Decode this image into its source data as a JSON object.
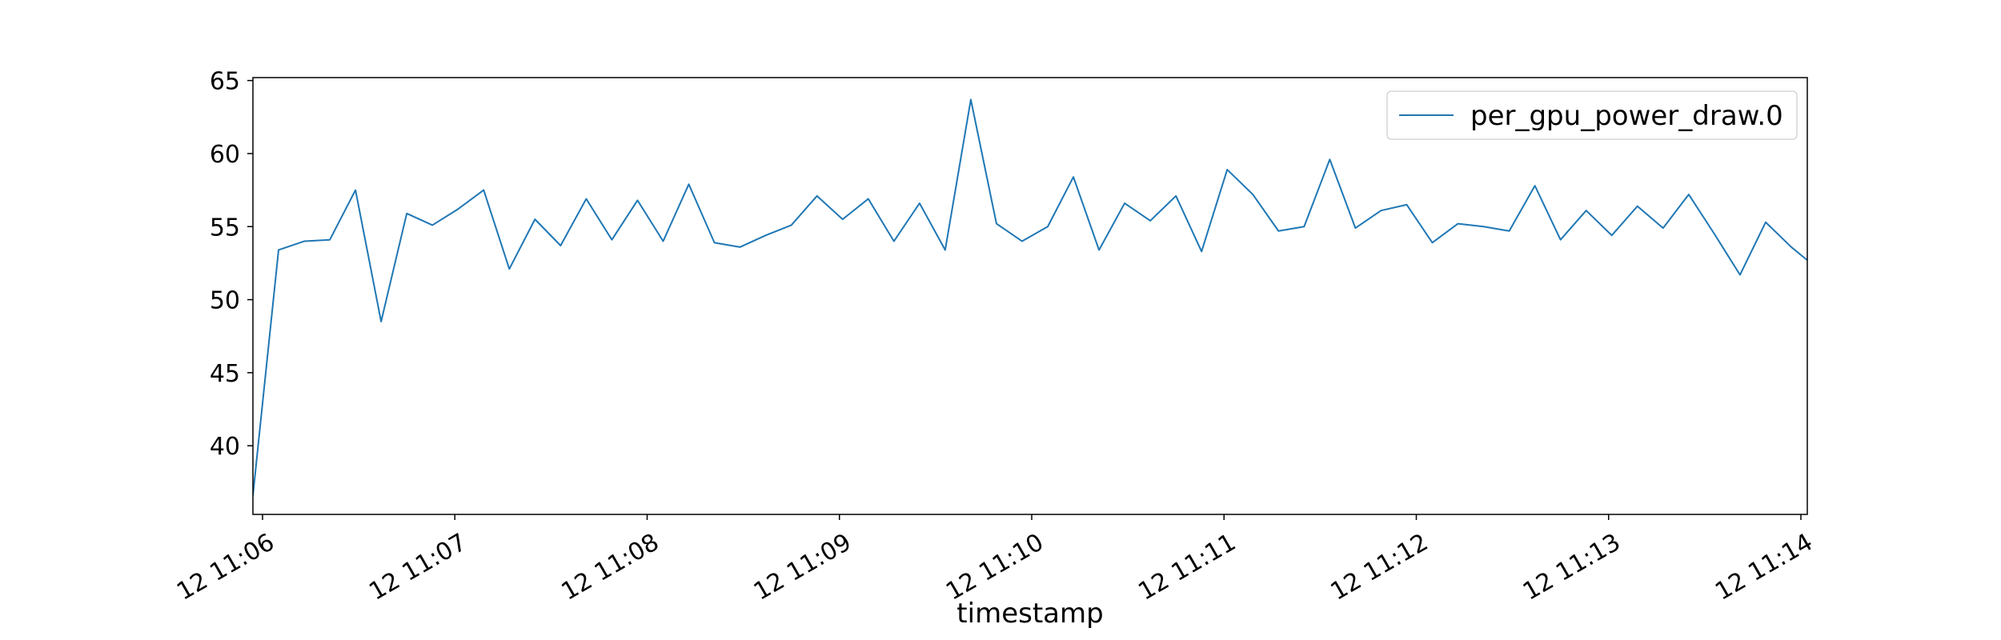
{
  "chart_data": {
    "type": "line",
    "title": "",
    "xlabel": "timestamp",
    "ylabel": "",
    "ylim": [
      35.3,
      65.2
    ],
    "xlim": [
      "12 11:05:57",
      "12 11:14:02"
    ],
    "x_ticks": [
      "12 11:06",
      "12 11:07",
      "12 11:08",
      "12 11:09",
      "12 11:10",
      "12 11:11",
      "12 11:12",
      "12 11:13",
      "12 11:14"
    ],
    "y_ticks": [
      40,
      45,
      50,
      55,
      60,
      65
    ],
    "grid": false,
    "legend_position": "top-right",
    "series": [
      {
        "name": "per_gpu_power_draw.0",
        "color": "#1f77b4",
        "x": [
          "12 11:05:57",
          "12 11:06:05",
          "12 11:06:13",
          "12 11:06:21",
          "12 11:06:29",
          "12 11:06:37",
          "12 11:06:45",
          "12 11:06:53",
          "12 11:07:01",
          "12 11:07:09",
          "12 11:07:17",
          "12 11:07:25",
          "12 11:07:33",
          "12 11:07:41",
          "12 11:07:49",
          "12 11:07:57",
          "12 11:08:05",
          "12 11:08:13",
          "12 11:08:21",
          "12 11:08:29",
          "12 11:08:37",
          "12 11:08:45",
          "12 11:08:53",
          "12 11:09:01",
          "12 11:09:09",
          "12 11:09:17",
          "12 11:09:25",
          "12 11:09:33",
          "12 11:09:41",
          "12 11:09:49",
          "12 11:09:57",
          "12 11:10:05",
          "12 11:10:13",
          "12 11:10:21",
          "12 11:10:29",
          "12 11:10:37",
          "12 11:10:45",
          "12 11:10:53",
          "12 11:11:01",
          "12 11:11:09",
          "12 11:11:17",
          "12 11:11:25",
          "12 11:11:33",
          "12 11:11:41",
          "12 11:11:49",
          "12 11:11:57",
          "12 11:12:05",
          "12 11:12:13",
          "12 11:12:21",
          "12 11:12:29",
          "12 11:12:37",
          "12 11:12:45",
          "12 11:12:53",
          "12 11:13:01",
          "12 11:13:09",
          "12 11:13:17",
          "12 11:13:25",
          "12 11:13:33",
          "12 11:13:41",
          "12 11:13:49",
          "12 11:13:57",
          "12 11:14:02"
        ],
        "values": [
          36.6,
          53.4,
          54.0,
          54.1,
          57.5,
          48.5,
          55.9,
          55.1,
          56.2,
          57.5,
          52.1,
          55.5,
          53.7,
          56.9,
          54.1,
          56.8,
          54.0,
          57.9,
          53.9,
          53.6,
          54.4,
          55.1,
          57.1,
          55.5,
          56.9,
          54.0,
          56.6,
          53.4,
          63.7,
          55.2,
          54.0,
          55.0,
          58.4,
          53.4,
          56.6,
          55.4,
          57.1,
          53.3,
          58.9,
          57.2,
          54.7,
          55.0,
          59.6,
          54.9,
          56.1,
          56.5,
          53.9,
          55.2,
          55.0,
          54.7,
          57.8,
          54.1,
          56.1,
          54.4,
          56.4,
          54.9,
          57.2,
          54.5,
          51.7,
          55.3,
          53.6,
          52.7
        ]
      }
    ]
  }
}
